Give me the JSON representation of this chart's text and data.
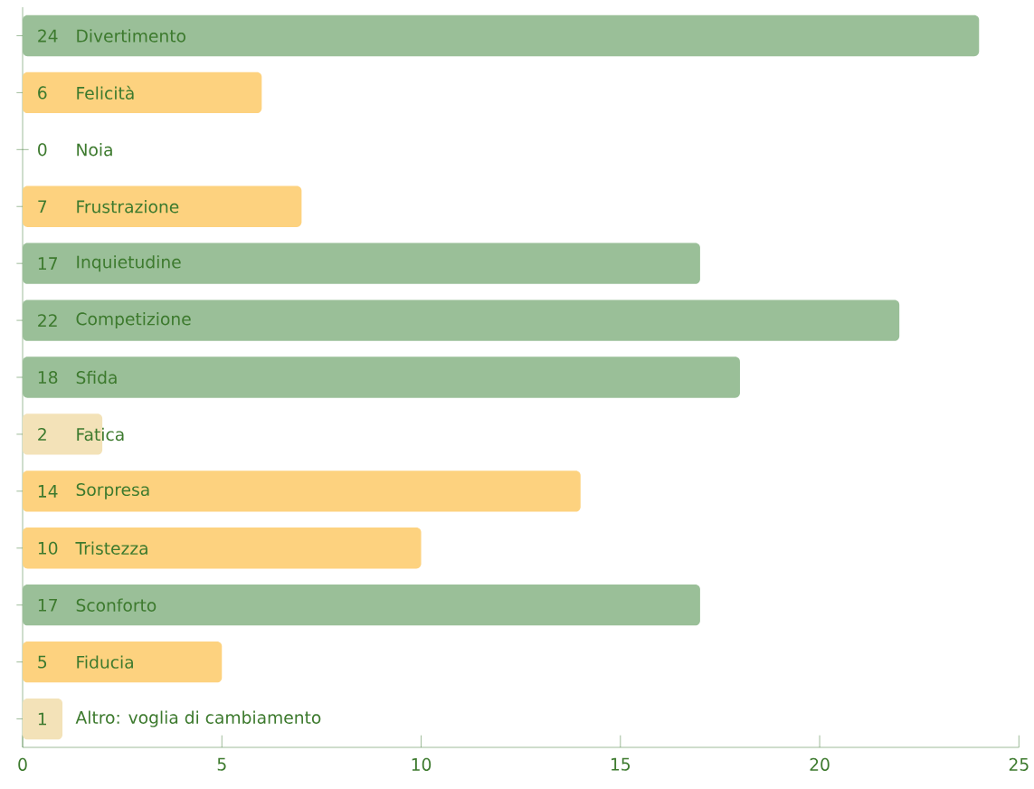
{
  "chart_data": {
    "type": "bar",
    "orientation": "horizontal",
    "categories": [
      "Divertimento",
      "Felicità",
      "Noia",
      "Frustrazione",
      "Inquietudine",
      "Competizione",
      "Sfida",
      "Fatica",
      "Sorpresa",
      "Tristezza",
      "Sconforto",
      "Fiducia",
      "Altro: voglia di cambiamento"
    ],
    "values": [
      24,
      6,
      0,
      7,
      17,
      22,
      18,
      2,
      14,
      10,
      17,
      5,
      1
    ],
    "colors": [
      "#9abf98",
      "#fdd27f",
      "#fdd27f",
      "#fdd27f",
      "#9abf98",
      "#9abf98",
      "#9abf98",
      "#f3e2b8",
      "#fdd27f",
      "#fdd27f",
      "#9abf98",
      "#fdd27f",
      "#f3e2b8"
    ],
    "xlim": [
      0,
      25
    ],
    "xticks": [
      0,
      5,
      10,
      15,
      20,
      25
    ],
    "data_labels": true
  }
}
